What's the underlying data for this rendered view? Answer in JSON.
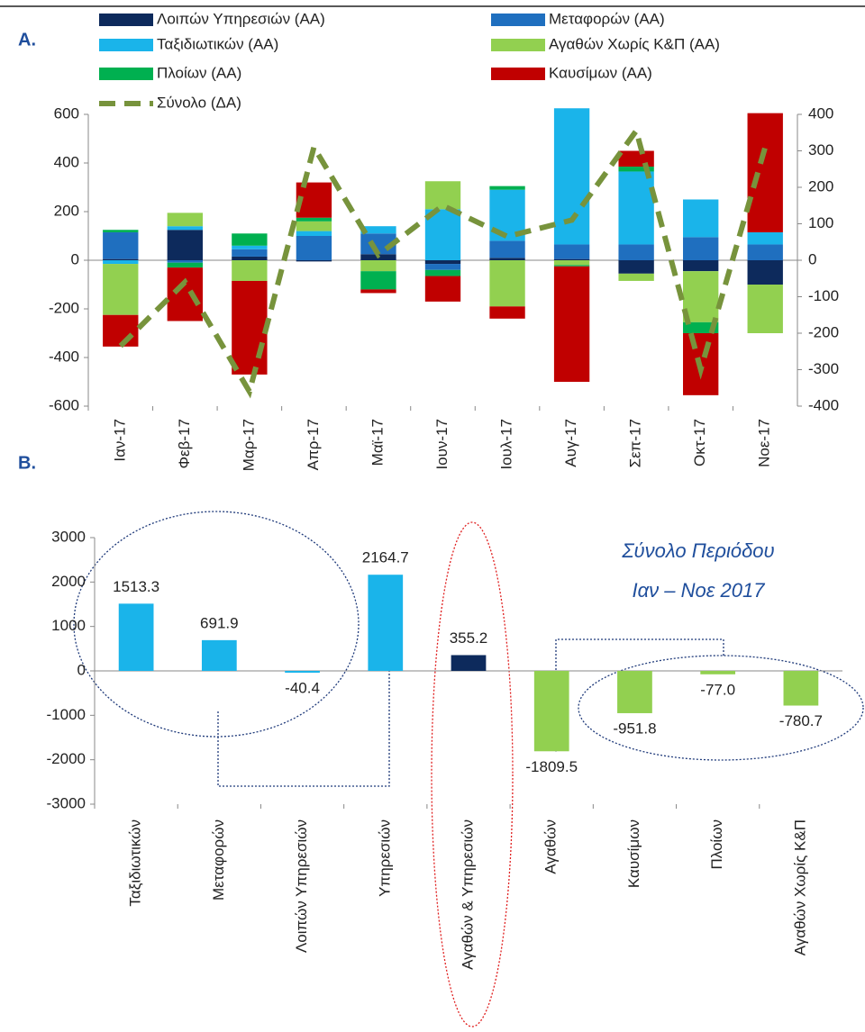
{
  "chart_data": [
    {
      "type": "bar",
      "label": "A.",
      "stacked": true,
      "grid": false,
      "categories": [
        "Ιαν-17",
        "Φεβ-17",
        "Μαρ-17",
        "Απρ-17",
        "Μαϊ-17",
        "Ιουν-17",
        "Ιουλ-17",
        "Αυγ-17",
        "Σεπ-17",
        "Οκτ-17",
        "Νοε-17"
      ],
      "series": [
        {
          "name": "Λοιπών Υπηρεσιών (ΑΑ)",
          "color": "#0d2a5c",
          "values": [
            5,
            125,
            15,
            -5,
            25,
            -15,
            10,
            5,
            -55,
            -45,
            -100
          ]
        },
        {
          "name": "Μεταφορών (ΑΑ)",
          "color": "#1f6fbf",
          "values": [
            110,
            -10,
            30,
            100,
            85,
            -25,
            70,
            60,
            65,
            95,
            65
          ]
        },
        {
          "name": "Ταξιδιωτικών (ΑΑ)",
          "color": "#1ab4ea",
          "values": [
            -15,
            15,
            15,
            20,
            30,
            210,
            210,
            560,
            300,
            155,
            50
          ]
        },
        {
          "name": "Αγαθών Χωρίς Κ&Π (ΑΑ)",
          "color": "#92d050",
          "values": [
            -210,
            55,
            -85,
            40,
            -45,
            115,
            -190,
            -20,
            -30,
            -210,
            -200
          ]
        },
        {
          "name": "Πλοίων (ΑΑ)",
          "color": "#00b050",
          "values": [
            10,
            -20,
            50,
            15,
            -75,
            -25,
            15,
            -5,
            20,
            -45,
            0
          ]
        },
        {
          "name": "Καυσίμων (ΑΑ)",
          "color": "#c00000",
          "values": [
            -130,
            -220,
            -385,
            145,
            -15,
            -105,
            -50,
            -475,
            65,
            -255,
            490
          ]
        },
        {
          "name": "Σύνολο (ΔΑ)",
          "color": "#77933c",
          "type": "line",
          "axis": "y2",
          "values": [
            -235,
            -60,
            -360,
            310,
            15,
            150,
            65,
            110,
            355,
            -300,
            310
          ]
        }
      ],
      "ylim": [
        -600,
        600
      ],
      "yticks": [
        -600,
        -400,
        -200,
        0,
        200,
        400,
        600
      ],
      "y2lim": [
        -400,
        400
      ],
      "y2ticks": [
        -400,
        -300,
        -200,
        -100,
        0,
        100,
        200,
        300,
        400
      ]
    },
    {
      "type": "bar",
      "label": "B.",
      "grid": false,
      "annotations": [
        "Σύνολο Περιόδου",
        "Ιαν – Νοε 2017"
      ],
      "categories": [
        "Ταξιδιωτικών",
        "Μεταφορών",
        "Λοιπών Υπηρεσιών",
        "Υπηρεσιών",
        "Αγαθών & Υπηρεσιών",
        "Αγαθών",
        "Καυσίμων",
        "Πλοίων",
        "Αγαθών Χωρίς Κ&Π"
      ],
      "values": [
        1513.3,
        691.9,
        -40.4,
        2164.7,
        355.2,
        -1809.5,
        -951.8,
        -77.0,
        -780.7
      ],
      "value_labels": [
        "1513.3",
        "691.9",
        "-40.4",
        "2164.7",
        "355.2",
        "-1809.5",
        "-951.8",
        "-77.0",
        "-780.7"
      ],
      "colors": [
        "#1ab4ea",
        "#1ab4ea",
        "#1ab4ea",
        "#1ab4ea",
        "#0d2a5c",
        "#92d050",
        "#92d050",
        "#92d050",
        "#92d050"
      ],
      "ylim": [
        -3000,
        3000
      ],
      "yticks": [
        -3000,
        -2000,
        -1000,
        0,
        1000,
        2000,
        3000
      ]
    }
  ]
}
